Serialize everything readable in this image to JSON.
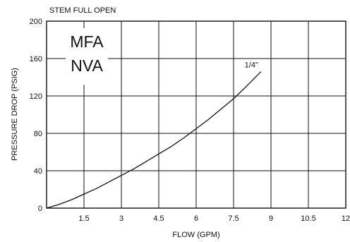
{
  "chart_data": {
    "type": "line",
    "title": "STEM FULL OPEN",
    "xlabel": "FLOW (GPM)",
    "ylabel": "PRESSURE DROP (PSIG)",
    "xlim": [
      0,
      12
    ],
    "ylim": [
      0,
      200
    ],
    "x_ticks": [
      1.5,
      3,
      4.5,
      6,
      7.5,
      9,
      10.5,
      12
    ],
    "x_tick_labels": [
      "1.5",
      "3",
      "4.5",
      "6",
      "7.5",
      "9",
      "10.5",
      "12"
    ],
    "y_ticks": [
      0,
      40,
      80,
      120,
      160,
      200
    ],
    "y_tick_labels": [
      "0",
      "40",
      "80",
      "120",
      "160",
      "200"
    ],
    "grid": true,
    "legend_box": [
      "MFA",
      "NVA"
    ],
    "series": [
      {
        "name": "1/4\"",
        "x": [
          0,
          0.5,
          1,
          1.5,
          2,
          2.5,
          3,
          3.5,
          4,
          4.5,
          5,
          5.5,
          6,
          6.5,
          7,
          7.5,
          8,
          8.6
        ],
        "y": [
          0,
          4,
          9,
          15,
          21,
          28,
          35,
          42,
          50,
          58,
          66,
          75,
          85,
          95,
          106,
          117,
          130,
          146
        ]
      }
    ]
  }
}
